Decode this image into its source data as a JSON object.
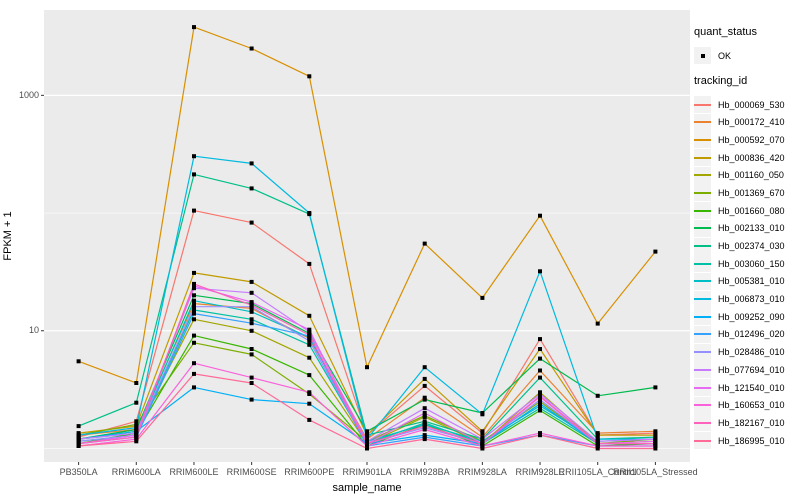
{
  "figure": {
    "background": "#FFFFFF",
    "panel_bg": "#EBEBEB",
    "grid_color": "#FFFFFF",
    "point_color": "#000000",
    "tick_mark_color": "#333333",
    "tick_label_color": "#4D4D4D",
    "legend_key_bg": "#F2F2F2"
  },
  "legend": {
    "quant_status_title": "quant_status",
    "quant_status_items": [
      "OK"
    ],
    "tracking_id_title": "tracking_id"
  },
  "chart_data": {
    "type": "line",
    "title": "",
    "xlabel": "sample_name",
    "ylabel": "FPKM + 1",
    "yscale": "log10",
    "grid": true,
    "legend_position": "right",
    "ylim_log10": [
      -0.115,
      3.725
    ],
    "yticks": [
      {
        "value": 10,
        "label": "10"
      },
      {
        "value": 1000,
        "label": "1000"
      }
    ],
    "minor_gridlines": [
      1,
      100
    ],
    "categories": [
      "PB350LA",
      "RRIM600LA",
      "RRIM600LE",
      "RRIM600SE",
      "RRIM600PE",
      "RRIM901LA",
      "RRIM928BA",
      "RRIM928LA",
      "RRIM928LE",
      "RRII105LA_Control",
      "RRII105LA_Stressed"
    ],
    "series": [
      {
        "name": "Hb_000069_530",
        "color": "#F8766D",
        "values": [
          1.25,
          1.7,
          105,
          83,
          37,
          1.3,
          3.4,
          1.35,
          8.5,
          1.3,
          1.35
        ]
      },
      {
        "name": "Hb_000172_410",
        "color": "#EA8331",
        "values": [
          1.3,
          1.45,
          17,
          15.5,
          8.6,
          1.2,
          2.7,
          1.25,
          4.6,
          1.35,
          1.4
        ]
      },
      {
        "name": "Hb_000592_070",
        "color": "#D89000",
        "values": [
          5.5,
          3.6,
          3800,
          2500,
          1450,
          4.9,
          55,
          19,
          95,
          11.5,
          47
        ]
      },
      {
        "name": "Hb_000836_420",
        "color": "#C09B00",
        "values": [
          1.35,
          1.55,
          31,
          26,
          13.4,
          1.3,
          3.9,
          1.4,
          7.0,
          1.3,
          1.3
        ]
      },
      {
        "name": "Hb_001160_050",
        "color": "#A3A500",
        "values": [
          1.2,
          1.4,
          12.5,
          10,
          5.9,
          1.1,
          1.85,
          1.1,
          3.0,
          1.1,
          1.15
        ]
      },
      {
        "name": "Hb_001369_670",
        "color": "#7CAE00",
        "values": [
          1.3,
          1.6,
          7.9,
          6.3,
          2.9,
          1.15,
          1.9,
          1.15,
          2.5,
          1.1,
          1.2
        ]
      },
      {
        "name": "Hb_001660_080",
        "color": "#39B600",
        "values": [
          1.1,
          1.35,
          9.1,
          7.0,
          4.2,
          1.05,
          1.6,
          1.05,
          2.1,
          1.05,
          1.1
        ]
      },
      {
        "name": "Hb_002133_010",
        "color": "#00BB4E",
        "values": [
          1.2,
          1.45,
          20,
          17,
          9.5,
          1.4,
          2.6,
          2.0,
          5.8,
          2.8,
          3.3
        ]
      },
      {
        "name": "Hb_002374_030",
        "color": "#00C087",
        "values": [
          1.55,
          2.45,
          213,
          162,
          98,
          1.3,
          1.7,
          1.2,
          4.0,
          1.2,
          1.25
        ]
      },
      {
        "name": "Hb_003060_150",
        "color": "#00C1A3",
        "values": [
          1.15,
          1.3,
          15,
          12.5,
          7.6,
          1.1,
          1.65,
          1.1,
          2.2,
          1.1,
          1.1
        ]
      },
      {
        "name": "Hb_005381_010",
        "color": "#00BFC4",
        "values": [
          1.2,
          1.35,
          18,
          14.5,
          8.8,
          1.15,
          1.6,
          1.15,
          2.3,
          1.15,
          1.2
        ]
      },
      {
        "name": "Hb_006873_010",
        "color": "#00BAE0",
        "values": [
          1.3,
          1.5,
          304,
          264,
          100,
          1.2,
          4.9,
          1.95,
          32,
          1.2,
          1.2
        ]
      },
      {
        "name": "Hb_009252_090",
        "color": "#00B0F6",
        "values": [
          1.2,
          1.4,
          3.3,
          2.6,
          2.4,
          1.1,
          1.3,
          1.1,
          2.4,
          1.1,
          1.1
        ]
      },
      {
        "name": "Hb_012496_020",
        "color": "#35A2FF",
        "values": [
          1.1,
          1.25,
          14,
          11.6,
          9.0,
          1.05,
          1.25,
          1.05,
          1.3,
          1.05,
          1.05
        ]
      },
      {
        "name": "Hb_028486_010",
        "color": "#9590FF",
        "values": [
          1.15,
          1.3,
          16,
          16,
          8.2,
          1.1,
          1.5,
          1.1,
          2.6,
          1.1,
          1.1
        ]
      },
      {
        "name": "Hb_077694_010",
        "color": "#C77CFF",
        "values": [
          1.2,
          1.35,
          23,
          21,
          9.8,
          1.15,
          2.2,
          1.2,
          2.9,
          1.15,
          1.2
        ]
      },
      {
        "name": "Hb_121540_010",
        "color": "#E76BF3",
        "values": [
          1.1,
          1.3,
          24,
          17.5,
          10.2,
          1.1,
          2.0,
          1.1,
          2.8,
          1.1,
          1.15
        ]
      },
      {
        "name": "Hb_160653_010",
        "color": "#FA62DB",
        "values": [
          1.05,
          1.2,
          5.3,
          4.0,
          3.0,
          1.05,
          1.45,
          1.05,
          1.35,
          1.05,
          1.05
        ]
      },
      {
        "name": "Hb_182167_010",
        "color": "#FF62BC",
        "values": [
          1.1,
          1.25,
          25,
          16.5,
          9.2,
          1.1,
          1.55,
          1.1,
          2.75,
          1.1,
          1.1
        ]
      },
      {
        "name": "Hb_186995_010",
        "color": "#FF6A98",
        "values": [
          1.05,
          1.15,
          4.3,
          3.6,
          1.75,
          1.0,
          1.2,
          1.0,
          1.3,
          1.0,
          1.0
        ]
      }
    ]
  }
}
